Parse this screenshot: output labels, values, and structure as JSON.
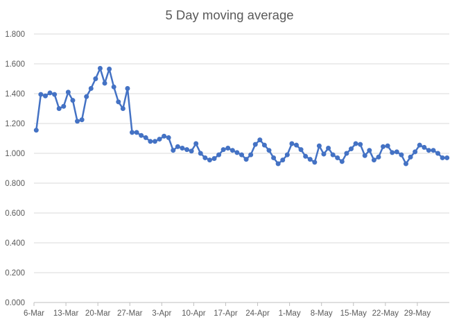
{
  "chart_data": {
    "type": "line",
    "title": "5 Day moving average",
    "xlabel": "",
    "ylabel": "",
    "ylim": [
      0,
      1.8
    ],
    "yticks": [
      0,
      0.2,
      0.4,
      0.6,
      0.8,
      1.0,
      1.2,
      1.4,
      1.6,
      1.8
    ],
    "ytick_labels": [
      "0.000",
      "0.200",
      "0.400",
      "0.600",
      "0.800",
      "1.000",
      "1.200",
      "1.400",
      "1.600",
      "1.800"
    ],
    "xtick_labels": [
      "6-Mar",
      "13-Mar",
      "20-Mar",
      "27-Mar",
      "3-Apr",
      "10-Apr",
      "17-Apr",
      "24-Apr",
      "1-May",
      "8-May",
      "15-May",
      "22-May",
      "29-May"
    ],
    "x_start": "6-Mar",
    "x_end": "4-Jun",
    "grid": true,
    "legend": "none",
    "series": [
      {
        "color": "#4472C4",
        "x": [
          "6-Mar",
          "7-Mar",
          "8-Mar",
          "9-Mar",
          "10-Mar",
          "11-Mar",
          "12-Mar",
          "13-Mar",
          "14-Mar",
          "15-Mar",
          "16-Mar",
          "17-Mar",
          "18-Mar",
          "19-Mar",
          "20-Mar",
          "21-Mar",
          "22-Mar",
          "23-Mar",
          "24-Mar",
          "25-Mar",
          "26-Mar",
          "27-Mar",
          "28-Mar",
          "29-Mar",
          "30-Mar",
          "31-Mar",
          "1-Apr",
          "2-Apr",
          "3-Apr",
          "4-Apr",
          "5-Apr",
          "6-Apr",
          "7-Apr",
          "8-Apr",
          "9-Apr",
          "10-Apr",
          "11-Apr",
          "12-Apr",
          "13-Apr",
          "14-Apr",
          "15-Apr",
          "16-Apr",
          "17-Apr",
          "18-Apr",
          "19-Apr",
          "20-Apr",
          "21-Apr",
          "22-Apr",
          "23-Apr",
          "24-Apr",
          "25-Apr",
          "26-Apr",
          "27-Apr",
          "28-Apr",
          "29-Apr",
          "30-Apr",
          "1-May",
          "2-May",
          "3-May",
          "4-May",
          "5-May",
          "6-May",
          "7-May",
          "8-May",
          "9-May",
          "10-May",
          "11-May",
          "12-May",
          "13-May",
          "14-May",
          "15-May",
          "16-May",
          "17-May",
          "18-May",
          "19-May",
          "20-May",
          "21-May",
          "22-May",
          "23-May",
          "24-May",
          "25-May",
          "26-May",
          "27-May",
          "28-May",
          "29-May",
          "30-May",
          "31-May",
          "1-Jun",
          "2-Jun",
          "3-Jun",
          "4-Jun"
        ],
        "values": [
          1.155,
          1.395,
          1.385,
          1.405,
          1.395,
          1.3,
          1.315,
          1.41,
          1.355,
          1.215,
          1.225,
          1.38,
          1.435,
          1.5,
          1.57,
          1.47,
          1.565,
          1.445,
          1.345,
          1.3,
          1.435,
          1.14,
          1.14,
          1.12,
          1.105,
          1.08,
          1.08,
          1.095,
          1.115,
          1.105,
          1.02,
          1.045,
          1.035,
          1.025,
          1.015,
          1.065,
          1.0,
          0.97,
          0.955,
          0.965,
          0.99,
          1.025,
          1.035,
          1.02,
          1.005,
          0.99,
          0.96,
          0.99,
          1.06,
          1.09,
          1.055,
          1.02,
          0.97,
          0.93,
          0.955,
          0.99,
          1.065,
          1.055,
          1.025,
          0.98,
          0.96,
          0.94,
          1.05,
          0.995,
          1.035,
          0.99,
          0.97,
          0.945,
          1.0,
          1.03,
          1.065,
          1.06,
          0.985,
          1.02,
          0.955,
          0.975,
          1.045,
          1.05,
          1.005,
          1.01,
          0.99,
          0.93,
          0.975,
          1.01,
          1.055,
          1.04,
          1.02,
          1.02,
          1.0,
          0.97,
          0.97
        ]
      }
    ]
  }
}
